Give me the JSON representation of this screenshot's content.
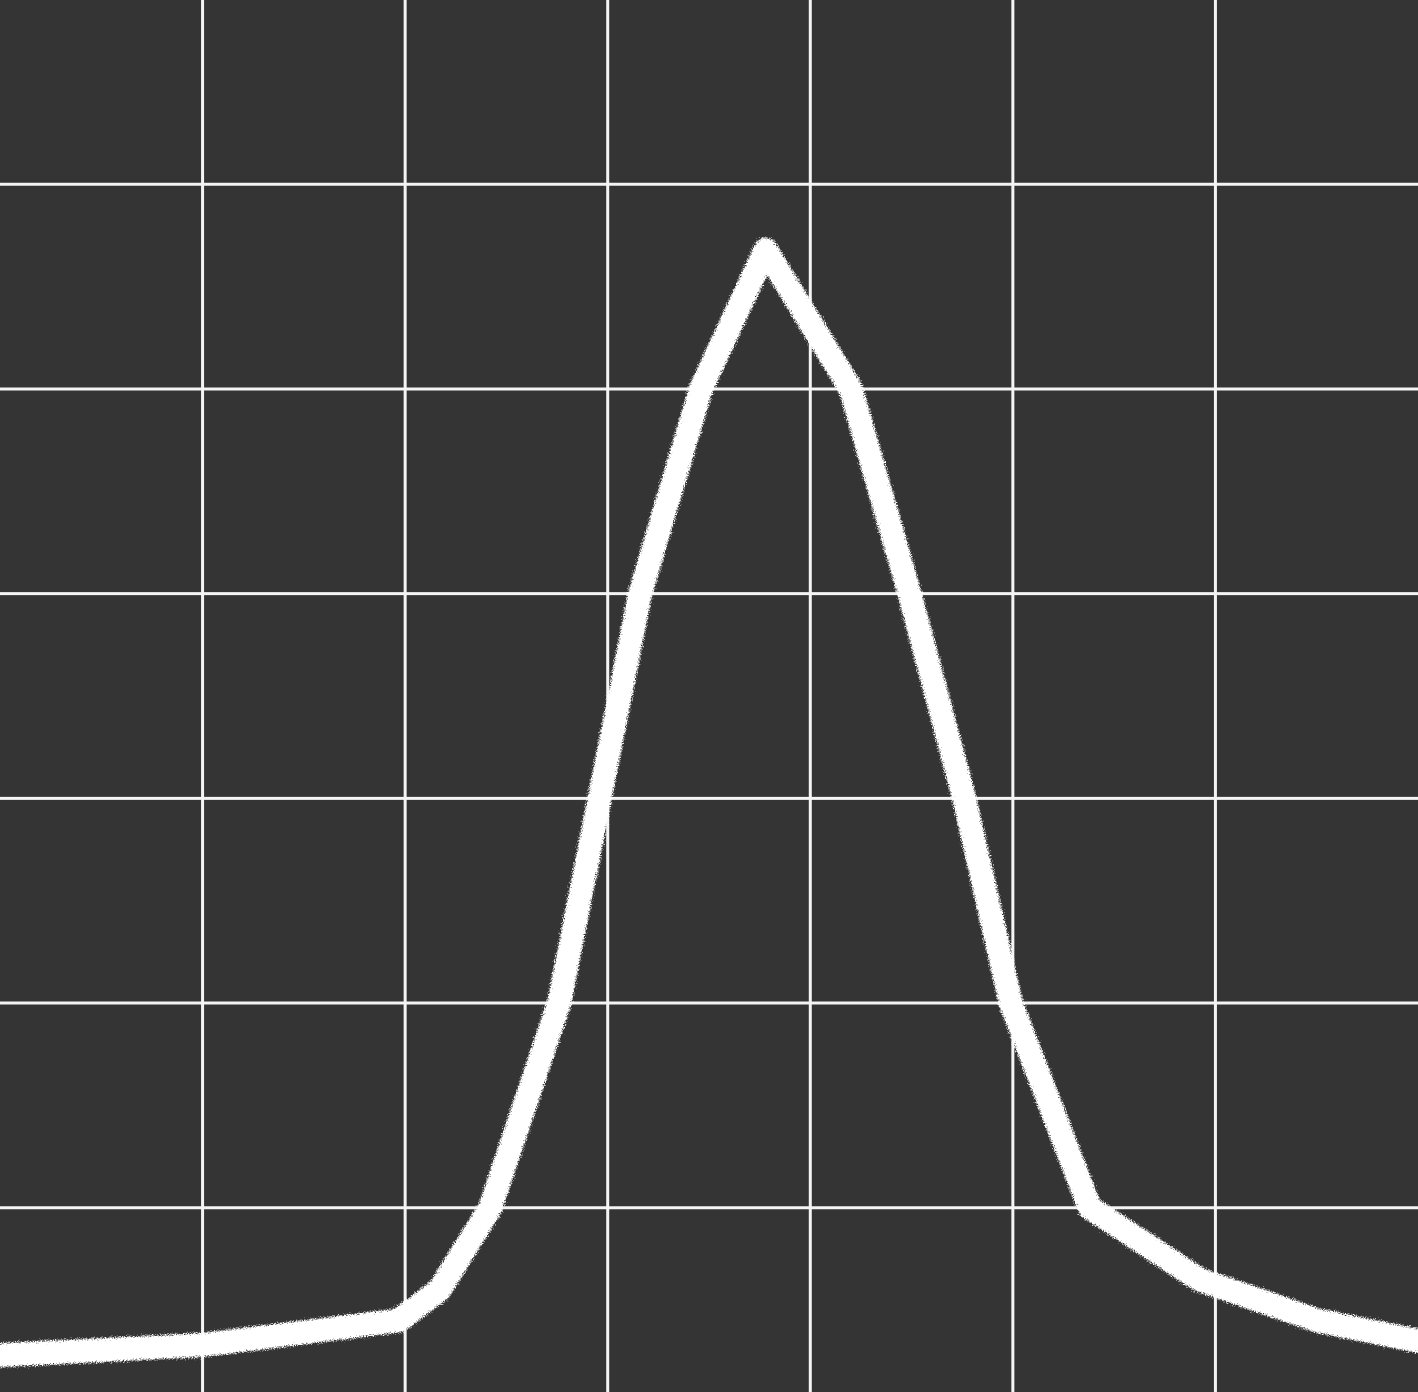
{
  "chart_data": {
    "type": "line",
    "x": [
      0,
      1,
      1.97,
      2.17,
      2.42,
      2.76,
      2.96,
      3.16,
      3.46,
      3.78,
      4.2,
      4.49,
      4.76,
      4.99,
      5.38,
      5.92,
      6.5,
      7
    ],
    "series": [
      {
        "color": "#ffffff",
        "values": [
          0.28,
          0.33,
          0.45,
          0.6,
          1,
          2,
          3,
          4,
          5,
          5.68,
          5,
          4,
          3,
          2,
          1,
          0.65,
          0.45,
          0.35
        ]
      }
    ],
    "xlim": [
      0,
      7
    ],
    "ylim": [
      0.1,
      6.9
    ],
    "xticks": [
      1,
      2,
      3,
      4,
      5,
      6
    ],
    "yticks": [
      1,
      2,
      3,
      4,
      5,
      6
    ],
    "grid": true
  }
}
